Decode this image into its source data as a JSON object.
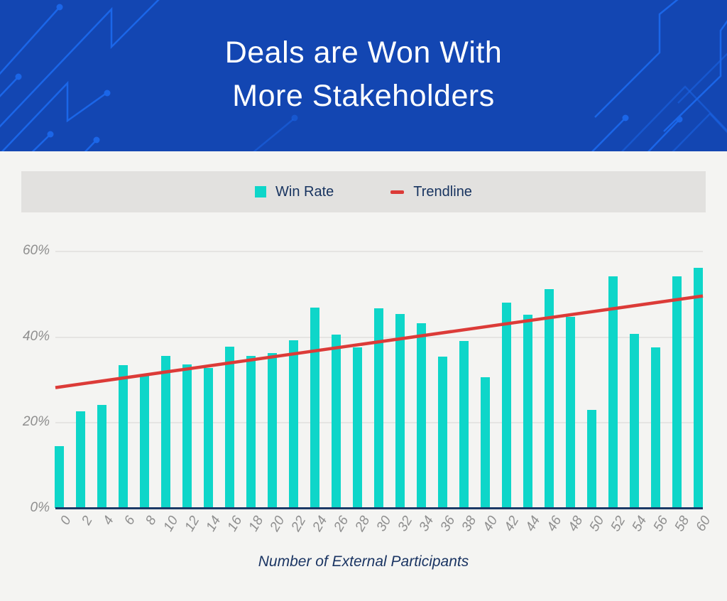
{
  "header": {
    "title_line1": "Deals are Won With",
    "title_line2": "More Stakeholders",
    "bg_color": "#1346b2",
    "pattern_color": "#1b66e8",
    "text_color": "#ffffff"
  },
  "legend": {
    "items": [
      {
        "label": "Win Rate",
        "marker": "square-icon",
        "color": "#0ed6c9"
      },
      {
        "label": "Trendline",
        "marker": "dash-icon",
        "color": "#dc3b38"
      }
    ],
    "bg_color": "#e2e1df",
    "text_color": "#17335f"
  },
  "chart_data": {
    "type": "bar",
    "title": "Deals are Won With More Stakeholders",
    "xlabel": "Number of External Participants",
    "ylabel": "",
    "categories": [
      0,
      2,
      4,
      6,
      8,
      10,
      12,
      14,
      16,
      18,
      20,
      22,
      24,
      26,
      28,
      30,
      32,
      34,
      36,
      38,
      40,
      42,
      44,
      46,
      48,
      50,
      52,
      54,
      56,
      58,
      60
    ],
    "series": [
      {
        "name": "Win Rate",
        "type": "bar",
        "color": "#0ed6c9",
        "values": [
          14.6,
          22.6,
          24.2,
          33.4,
          31.0,
          35.6,
          33.6,
          32.7,
          37.7,
          35.6,
          36.3,
          39.2,
          46.9,
          40.5,
          37.6,
          46.8,
          45.4,
          43.2,
          35.4,
          39.1,
          30.6,
          48.1,
          45.2,
          51.2,
          44.7,
          23.0,
          54.2,
          40.7,
          37.6,
          54.2,
          56.2
        ]
      },
      {
        "name": "Trendline",
        "type": "line",
        "color": "#dc3b38",
        "start_value": 28.2,
        "end_value": 49.6
      }
    ],
    "ylim": [
      0,
      60
    ],
    "yticks": [
      0,
      20,
      40,
      60
    ],
    "ytick_labels": [
      "0%",
      "20%",
      "40%",
      "60%"
    ],
    "grid": true,
    "legend_position": "top",
    "colors": {
      "grid": "#e5e4e2",
      "axis_line": "#1b3a66",
      "tick_text": "#8e8e8e",
      "axis_title_text": "#1b3563"
    }
  }
}
